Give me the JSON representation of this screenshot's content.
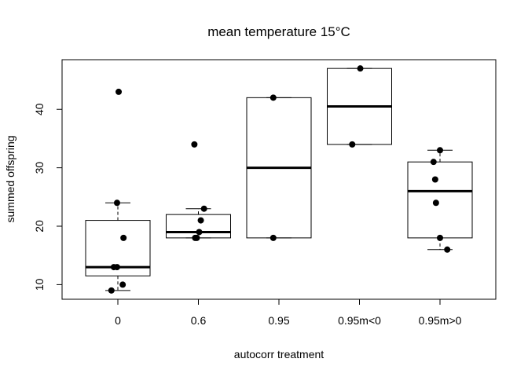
{
  "chart_data": {
    "type": "box",
    "title": "mean temperature 15°C",
    "xlabel": "autocorr treatment",
    "ylabel": "summed offspring",
    "categories": [
      "0",
      "0.6",
      "0.95",
      "0.95m<0",
      "0.95m>0"
    ],
    "ylim": [
      7.5,
      48.5
    ],
    "yticks": [
      10,
      20,
      30,
      40
    ],
    "boxes": [
      {
        "whisker_low": 9,
        "q1": 11.5,
        "median": 13,
        "q3": 21,
        "whisker_high": 24,
        "outliers": [
          43
        ]
      },
      {
        "whisker_low": 18,
        "q1": 18,
        "median": 19,
        "q3": 22,
        "whisker_high": 23,
        "outliers": [
          34
        ]
      },
      {
        "whisker_low": 18,
        "q1": 18,
        "median": 30,
        "q3": 42,
        "whisker_high": 42,
        "outliers": []
      },
      {
        "whisker_low": 34,
        "q1": 34,
        "median": 40.5,
        "q3": 47,
        "whisker_high": 47,
        "outliers": []
      },
      {
        "whisker_low": 16,
        "q1": 18,
        "median": 26,
        "q3": 31,
        "whisker_high": 33,
        "outliers": []
      }
    ],
    "points": [
      [
        {
          "x": -0.08,
          "y": 9
        },
        {
          "x": -0.05,
          "y": 13
        },
        {
          "x": -0.01,
          "y": 13
        },
        {
          "x": -0.01,
          "y": 24
        },
        {
          "x": 0.01,
          "y": 43
        },
        {
          "x": 0.06,
          "y": 10
        },
        {
          "x": 0.07,
          "y": 18
        }
      ],
      [
        {
          "x": -0.05,
          "y": 34
        },
        {
          "x": -0.04,
          "y": 18
        },
        {
          "x": -0.02,
          "y": 18
        },
        {
          "x": 0.01,
          "y": 19
        },
        {
          "x": 0.03,
          "y": 21
        },
        {
          "x": 0.07,
          "y": 23
        }
      ],
      [
        {
          "x": -0.07,
          "y": 18
        },
        {
          "x": -0.07,
          "y": 42
        }
      ],
      [
        {
          "x": -0.09,
          "y": 34
        },
        {
          "x": 0.01,
          "y": 47
        }
      ],
      [
        {
          "x": -0.08,
          "y": 31
        },
        {
          "x": -0.06,
          "y": 28
        },
        {
          "x": -0.05,
          "y": 24
        },
        {
          "x": 0.0,
          "y": 18
        },
        {
          "x": 0.0,
          "y": 33
        },
        {
          "x": 0.09,
          "y": 16
        }
      ]
    ]
  }
}
